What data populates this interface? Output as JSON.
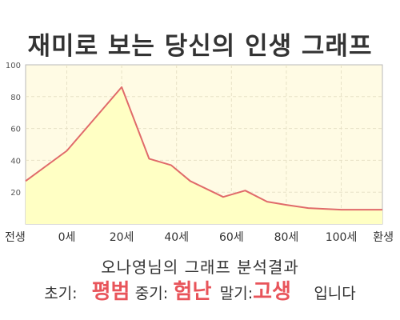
{
  "chart_data": {
    "type": "area",
    "title": "재미로 보는 당신의 인생 그래프",
    "x_tick_labels": [
      "전생",
      "0세",
      "20세",
      "40세",
      "60세",
      "80세",
      "100세",
      "환생"
    ],
    "x_tick_positions": [
      -15,
      0,
      20,
      40,
      60,
      80,
      100,
      115
    ],
    "y_ticks": [
      20,
      40,
      60,
      80,
      100
    ],
    "ylim": [
      0,
      100
    ],
    "xlim": [
      -15,
      115
    ],
    "grid": true,
    "series": [
      {
        "x": [
          -15,
          0,
          20,
          30,
          38,
          45,
          57,
          65,
          73,
          80,
          88,
          100,
          115
        ],
        "values": [
          27,
          46,
          86,
          41,
          37,
          27,
          17,
          21,
          14,
          12,
          10,
          9,
          9
        ]
      }
    ],
    "colors": {
      "line": "#e06a6a",
      "fill": "#ffffc4",
      "plot_bg": "#fffbe4",
      "grid": "#e7e1c6"
    }
  },
  "caption": "오나영님의 그래프 분석결과",
  "verdict": {
    "early_label": "초기:",
    "early_value": "평범",
    "middle_label": "중기:",
    "middle_value": "험난",
    "late_label": "말기:",
    "late_value": "고생",
    "ending": "입니다"
  }
}
